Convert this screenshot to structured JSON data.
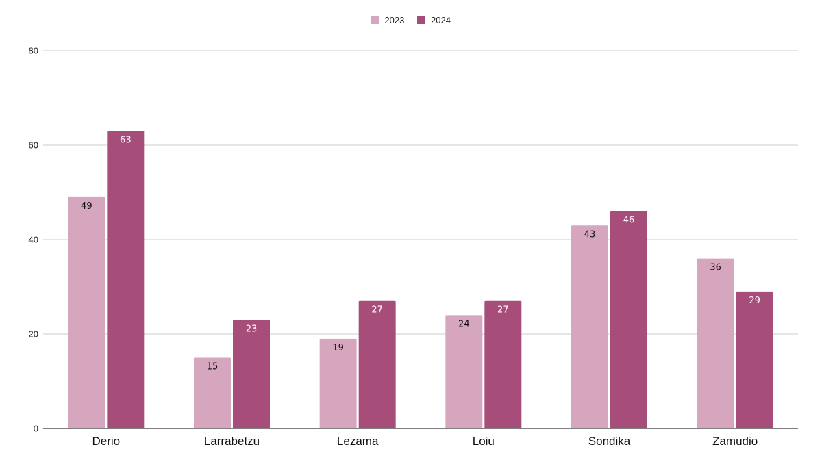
{
  "chart_data": {
    "type": "bar",
    "title": "",
    "xlabel": "",
    "ylabel": "",
    "categories": [
      "Derio",
      "Larrabetzu",
      "Lezama",
      "Loiu",
      "Sondika",
      "Zamudio"
    ],
    "series": [
      {
        "name": "2023",
        "values": [
          49,
          15,
          19,
          24,
          43,
          36
        ],
        "color": "#d6a5be",
        "label_color": "#111111"
      },
      {
        "name": "2024",
        "values": [
          63,
          23,
          27,
          27,
          46,
          29
        ],
        "color": "#a64d79",
        "label_color": "#ffffff"
      }
    ],
    "ylim": [
      0,
      80
    ],
    "yticks": [
      0,
      20,
      40,
      60,
      80
    ],
    "grid": true,
    "legend_position": "top-center",
    "data_labels": true,
    "axis_color": "#333333",
    "grid_color": "#cccccc"
  }
}
